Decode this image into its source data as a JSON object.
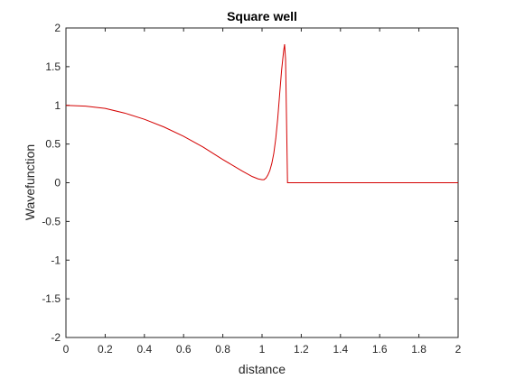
{
  "chart_data": {
    "type": "line",
    "title": "Square well",
    "xlabel": "distance",
    "ylabel": "Wavefunction",
    "xlim": [
      0,
      2
    ],
    "ylim": [
      -2,
      2
    ],
    "xticks": [
      0,
      0.2,
      0.4,
      0.6,
      0.8,
      1,
      1.2,
      1.4,
      1.6,
      1.8,
      2
    ],
    "xtick_labels": [
      "0",
      "0.2",
      "0.4",
      "0.6",
      "0.8",
      "1",
      "1.2",
      "1.4",
      "1.6",
      "1.8",
      "2"
    ],
    "yticks": [
      -2,
      -1.5,
      -1,
      -0.5,
      0,
      0.5,
      1,
      1.5,
      2
    ],
    "ytick_labels": [
      "-2",
      "-1.5",
      "-1",
      "-0.5",
      "0",
      "0.5",
      "1",
      "1.5",
      "2"
    ],
    "grid": false,
    "series": [
      {
        "color": "#d40000",
        "x": [
          0,
          0.1,
          0.2,
          0.3,
          0.4,
          0.5,
          0.6,
          0.7,
          0.8,
          0.9,
          0.95,
          0.98,
          1.0,
          1.01,
          1.02,
          1.03,
          1.04,
          1.05,
          1.06,
          1.07,
          1.08,
          1.09,
          1.1,
          1.11,
          1.115,
          1.12,
          1.13,
          1.14,
          1.2,
          1.4,
          1.6,
          1.8,
          2.0
        ],
        "y": [
          1.0,
          0.99,
          0.96,
          0.9,
          0.82,
          0.72,
          0.6,
          0.46,
          0.3,
          0.15,
          0.08,
          0.05,
          0.04,
          0.04,
          0.06,
          0.1,
          0.16,
          0.25,
          0.38,
          0.57,
          0.83,
          1.15,
          1.46,
          1.7,
          1.79,
          1.6,
          0.0,
          0.0,
          0.0,
          0.0,
          0.0,
          0.0,
          0.0
        ]
      }
    ]
  }
}
